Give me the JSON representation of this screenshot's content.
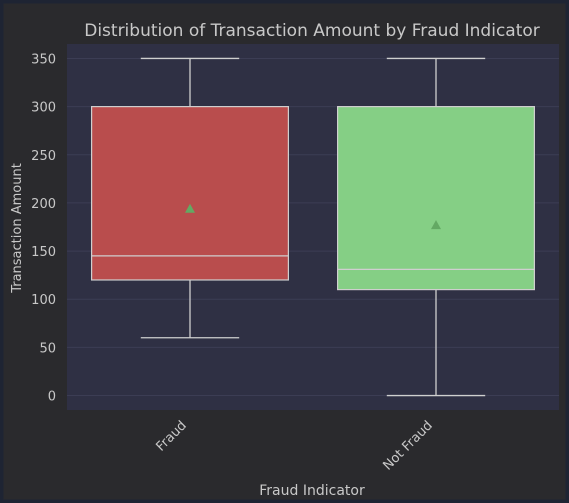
{
  "chart_data": {
    "type": "box",
    "title": "Distribution of Transaction Amount by Fraud Indicator",
    "xlabel": "Fraud Indicator",
    "ylabel": "Transaction Amount",
    "ylim": [
      -15,
      365
    ],
    "yticks": [
      0,
      50,
      100,
      150,
      200,
      250,
      300,
      350
    ],
    "grid": true,
    "categories": [
      "Fraud",
      "Not Fraud"
    ],
    "boxes": [
      {
        "category": "Fraud",
        "whisker_low": 60,
        "q1": 120,
        "median": 145,
        "q3": 300,
        "whisker_high": 350,
        "mean": 194,
        "color": "#b94d4d"
      },
      {
        "category": "Not Fraud",
        "whisker_low": 0,
        "q1": 110,
        "median": 131,
        "q3": 300,
        "whisker_high": 350,
        "mean": 177,
        "color": "#85cf85"
      }
    ],
    "mean_marker_color": "#63a963",
    "colors": {
      "figure_background": "#2a2a2d",
      "plot_background": "#2f3044",
      "grid": "#3c3d54",
      "text": "#c8c8c8",
      "whisker": "#cfcfcf",
      "outer_border": "#1e2433"
    }
  }
}
